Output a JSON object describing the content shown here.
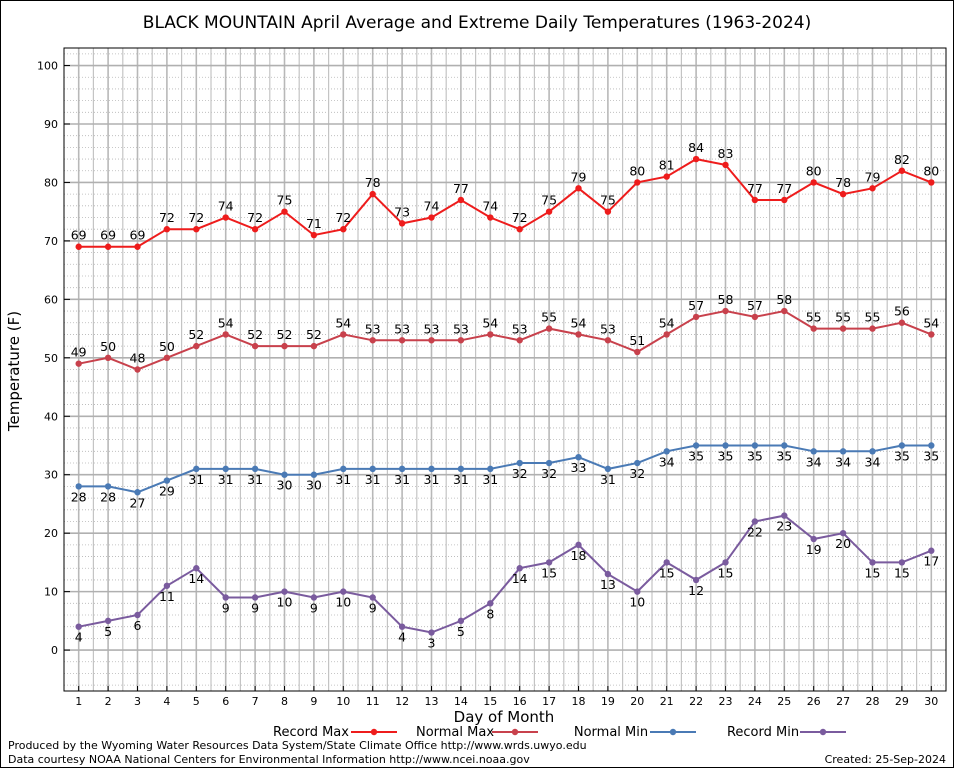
{
  "chart_data": {
    "type": "line",
    "title": "BLACK MOUNTAIN April Average and Extreme Daily Temperatures (1963-2024)",
    "xlabel": "Day of Month",
    "ylabel": "Temperature (F)",
    "ylim": [
      -7,
      103
    ],
    "xlim": [
      0.5,
      30.5
    ],
    "yticks": [
      0,
      10,
      20,
      30,
      40,
      50,
      60,
      70,
      80,
      90,
      100
    ],
    "x": [
      1,
      2,
      3,
      4,
      5,
      6,
      7,
      8,
      9,
      10,
      11,
      12,
      13,
      14,
      15,
      16,
      17,
      18,
      19,
      20,
      21,
      22,
      23,
      24,
      25,
      26,
      27,
      28,
      29,
      30
    ],
    "grid": true,
    "legend_position": "bottom",
    "series": [
      {
        "name": "Record Max",
        "color": "#ee1c1c",
        "label_pos": "above",
        "values": [
          69,
          69,
          69,
          72,
          72,
          74,
          72,
          75,
          71,
          72,
          78,
          73,
          74,
          77,
          74,
          72,
          75,
          79,
          75,
          80,
          81,
          84,
          83,
          77,
          77,
          80,
          78,
          79,
          82,
          80
        ]
      },
      {
        "name": "Normal Max",
        "color": "#c8414c",
        "label_pos": "above",
        "values": [
          49,
          50,
          48,
          50,
          52,
          54,
          52,
          52,
          52,
          54,
          53,
          53,
          53,
          53,
          54,
          53,
          55,
          54,
          53,
          51,
          54,
          57,
          58,
          57,
          58,
          55,
          55,
          55,
          56,
          54
        ]
      },
      {
        "name": "Normal Min",
        "color": "#4a7ab5",
        "label_pos": "below",
        "values": [
          28,
          28,
          27,
          29,
          31,
          31,
          31,
          30,
          30,
          31,
          31,
          31,
          31,
          31,
          31,
          32,
          32,
          33,
          31,
          32,
          34,
          35,
          35,
          35,
          35,
          34,
          34,
          34,
          35,
          35
        ]
      },
      {
        "name": "Record Min",
        "color": "#7a5b9e",
        "label_pos": "below",
        "values": [
          4,
          5,
          6,
          11,
          14,
          9,
          9,
          10,
          9,
          10,
          9,
          4,
          3,
          5,
          8,
          14,
          15,
          18,
          13,
          10,
          15,
          12,
          15,
          22,
          23,
          19,
          20,
          15,
          15,
          17
        ]
      }
    ]
  },
  "footer": {
    "line1": "Produced by the Wyoming Water Resources Data System/State Climate Office http://www.wrds.uwyo.edu",
    "line2": "Data courtesy NOAA National Centers for Environmental Information http://www.ncei.noaa.gov",
    "created": "Created:  25-Sep-2024"
  }
}
